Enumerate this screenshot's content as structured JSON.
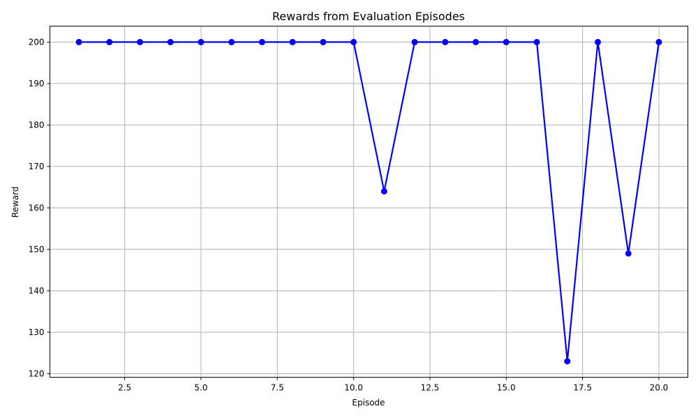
{
  "chart_data": {
    "type": "line",
    "title": "Rewards from Evaluation Episodes",
    "xlabel": "Episode",
    "ylabel": "Reward",
    "x": [
      1,
      2,
      3,
      4,
      5,
      6,
      7,
      8,
      9,
      10,
      11,
      12,
      13,
      14,
      15,
      16,
      17,
      18,
      19,
      20
    ],
    "series": [
      {
        "values": [
          200,
          200,
          200,
          200,
          200,
          200,
          200,
          200,
          200,
          200,
          164,
          200,
          200,
          200,
          200,
          200,
          123,
          200,
          149,
          200
        ],
        "color": "#0000ff",
        "marker": "circle"
      }
    ],
    "xlim": [
      0.05,
      20.95
    ],
    "ylim": [
      119.15,
      203.85
    ],
    "xticks": [
      2.5,
      5.0,
      7.5,
      10.0,
      12.5,
      15.0,
      17.5,
      20.0
    ],
    "xtick_labels": [
      "2.5",
      "5.0",
      "7.5",
      "10.0",
      "12.5",
      "15.0",
      "17.5",
      "20.0"
    ],
    "yticks": [
      120,
      130,
      140,
      150,
      160,
      170,
      180,
      190,
      200
    ],
    "ytick_labels": [
      "120",
      "130",
      "140",
      "150",
      "160",
      "170",
      "180",
      "190",
      "200"
    ],
    "grid": true
  }
}
